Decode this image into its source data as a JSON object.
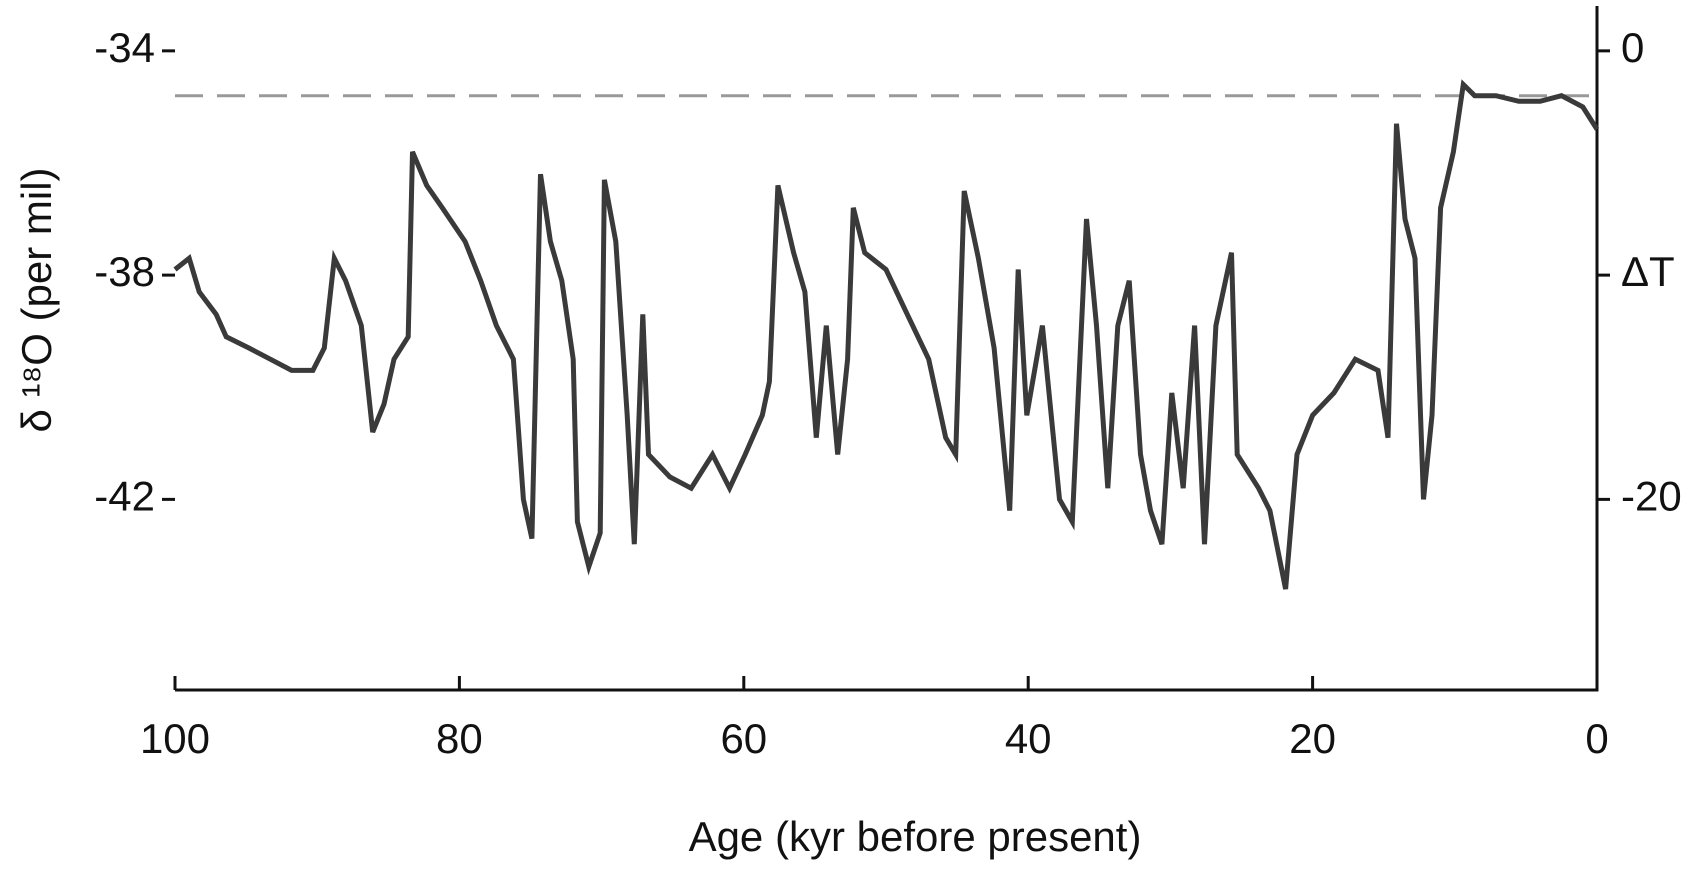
{
  "chart_data": {
    "type": "line",
    "xlabel": "Age (kyr before present)",
    "ylabel": "δ ¹⁸O (per mil)",
    "x": [
      100,
      99.0,
      98.3,
      97.1,
      96.4,
      94.8,
      93.3,
      91.8,
      90.3,
      89.5,
      88.8,
      88.0,
      86.9,
      86.1,
      85.3,
      84.6,
      83.6,
      83.3,
      82.3,
      81.2,
      79.6,
      78.5,
      77.4,
      76.2,
      75.5,
      74.9,
      74.3,
      73.6,
      72.8,
      72.0,
      71.7,
      70.9,
      70.1,
      69.8,
      69.0,
      68.2,
      67.7,
      67.1,
      66.7,
      65.2,
      63.7,
      62.2,
      61.0,
      59.9,
      58.7,
      58.2,
      57.6,
      56.5,
      55.7,
      54.9,
      54.2,
      53.4,
      52.7,
      52.3,
      51.5,
      50.0,
      48.5,
      47.0,
      45.8,
      45.1,
      44.5,
      43.5,
      42.4,
      41.3,
      40.7,
      40.1,
      39.0,
      37.8,
      36.9,
      35.9,
      35.2,
      34.4,
      33.7,
      32.9,
      32.1,
      31.4,
      30.6,
      29.9,
      29.1,
      28.3,
      27.6,
      26.8,
      25.7,
      25.3,
      23.8,
      23.0,
      21.9,
      21.1,
      20.0,
      18.5,
      17.0,
      15.4,
      14.7,
      14.1,
      13.5,
      12.8,
      12.2,
      11.6,
      11.0,
      10.1,
      9.4,
      8.6,
      7.1,
      5.5,
      4.0,
      2.5,
      1.0,
      0
    ],
    "values": [
      -37.9,
      -37.7,
      -38.3,
      -38.7,
      -39.1,
      -39.3,
      -39.5,
      -39.7,
      -39.7,
      -39.3,
      -37.7,
      -38.1,
      -38.9,
      -40.8,
      -40.3,
      -39.5,
      -39.1,
      -35.8,
      -36.4,
      -36.8,
      -37.4,
      -38.1,
      -38.9,
      -39.5,
      -42.0,
      -42.7,
      -36.2,
      -37.4,
      -38.1,
      -39.5,
      -42.4,
      -43.2,
      -42.6,
      -36.3,
      -37.4,
      -40.5,
      -42.8,
      -38.7,
      -41.2,
      -41.6,
      -41.8,
      -41.2,
      -41.8,
      -41.2,
      -40.5,
      -39.9,
      -36.4,
      -37.6,
      -38.3,
      -40.9,
      -38.9,
      -41.2,
      -39.5,
      -36.8,
      -37.6,
      -37.9,
      -38.7,
      -39.5,
      -40.9,
      -41.2,
      -36.5,
      -37.7,
      -39.3,
      -42.2,
      -37.9,
      -40.5,
      -38.9,
      -42.0,
      -42.4,
      -37.0,
      -38.9,
      -41.8,
      -38.9,
      -38.1,
      -41.2,
      -42.2,
      -42.8,
      -40.1,
      -41.8,
      -38.9,
      -42.8,
      -38.9,
      -37.6,
      -41.2,
      -41.8,
      -42.2,
      -43.6,
      -41.2,
      -40.5,
      -40.1,
      -39.5,
      -39.7,
      -40.9,
      -35.3,
      -37.0,
      -37.7,
      -42.0,
      -40.5,
      -36.8,
      -35.8,
      -34.6,
      -34.8,
      -34.8,
      -34.9,
      -34.9,
      -34.8,
      -35.0,
      -35.4
    ],
    "color": "#3a3a3a",
    "xlim": [
      100,
      0
    ],
    "xticks": [
      100,
      80,
      60,
      40,
      20,
      0
    ],
    "ylim": [
      -45.4,
      -33.2
    ],
    "yticks": [
      -34,
      -38,
      -42
    ],
    "y2lim": [
      -28.5,
      2
    ],
    "y2ticks": [
      0,
      {
        "value": -10,
        "label": "ΔT"
      },
      -20
    ],
    "reference_line": {
      "value": -34.8,
      "color": "#999999"
    }
  }
}
